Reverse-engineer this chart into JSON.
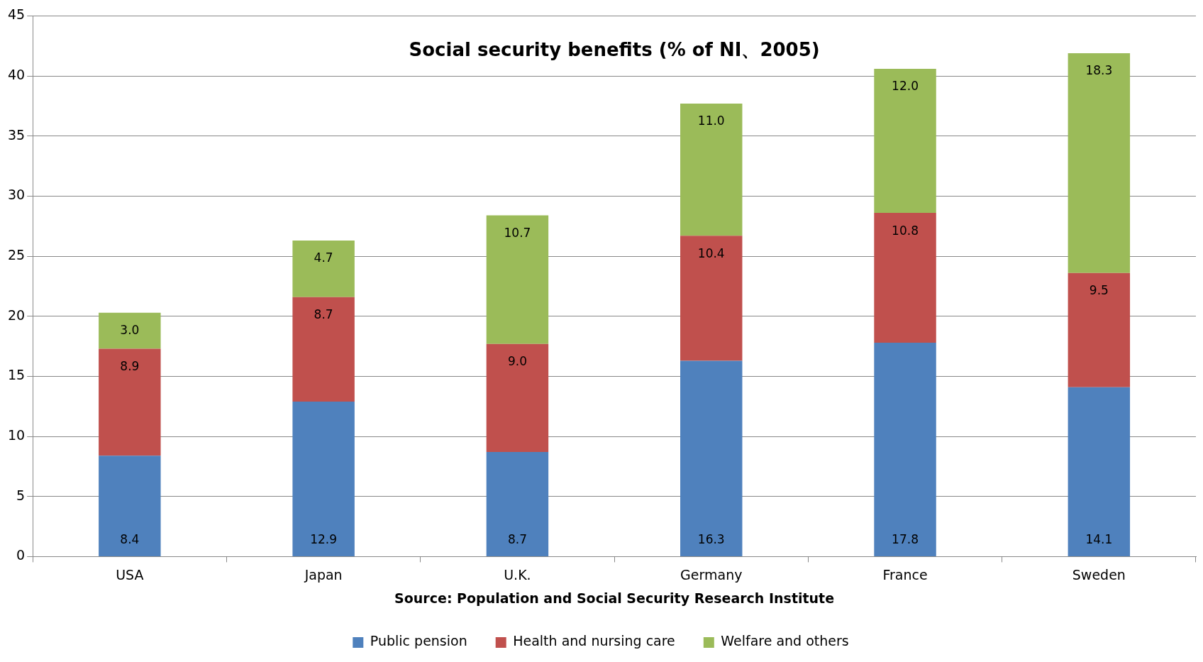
{
  "chart_data": {
    "type": "bar",
    "title": "Social security benefits (% of NI、2005)",
    "categories": [
      "USA",
      "Japan",
      "U.K.",
      "Germany",
      "France",
      "Sweden"
    ],
    "series": [
      {
        "name": "Public pension",
        "color": "#4f81bd",
        "values": [
          8.4,
          12.9,
          8.7,
          16.3,
          17.8,
          14.1
        ],
        "value_labels": [
          "8.4",
          "12.9",
          "8.7",
          "16.3",
          "17.8",
          "14.1"
        ]
      },
      {
        "name": "Health and nursing care",
        "color": "#c0504d",
        "values": [
          8.9,
          8.7,
          9.0,
          10.4,
          10.8,
          9.5
        ],
        "value_labels": [
          "8.9",
          "8.7",
          "9.0",
          "10.4",
          "10.8",
          "9.5"
        ]
      },
      {
        "name": "Welfare and others",
        "color": "#9bbb59",
        "values": [
          3.0,
          4.7,
          10.7,
          11.0,
          12.0,
          18.3
        ],
        "value_labels": [
          "3.0",
          "4.7",
          "10.7",
          "11.0",
          "12.0",
          "18.3"
        ]
      }
    ],
    "stacked": true,
    "ylim": [
      0,
      45
    ],
    "yticks": [
      0,
      5,
      10,
      15,
      20,
      25,
      30,
      35,
      40,
      45
    ],
    "grid": "y",
    "legend": "bottom",
    "annotations": [
      "Source: Population and Social Security Research Institute"
    ]
  }
}
